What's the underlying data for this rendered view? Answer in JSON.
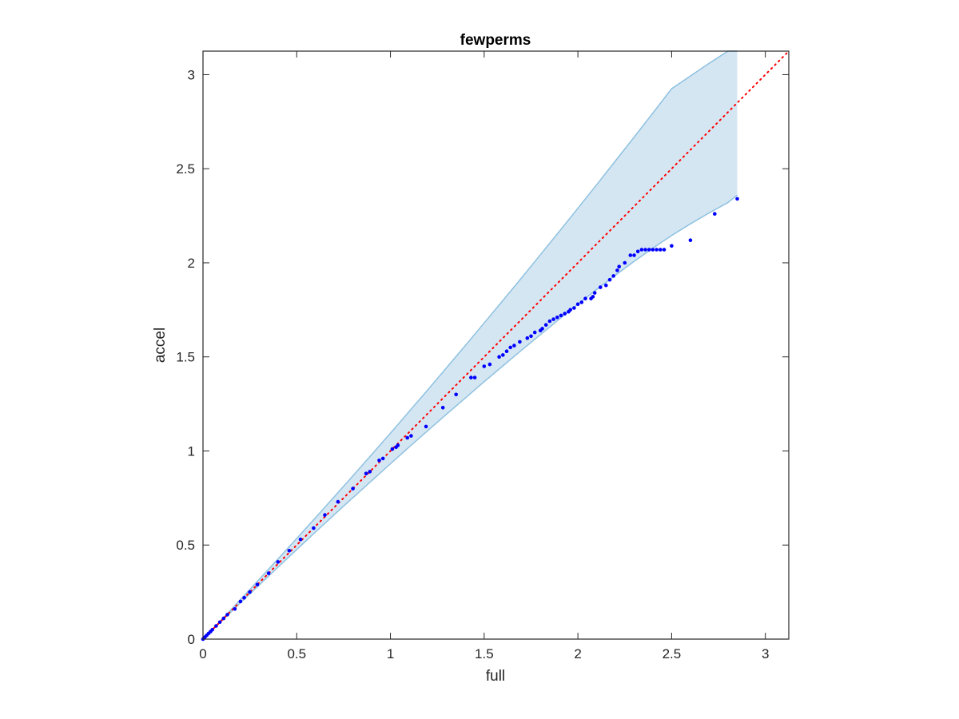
{
  "chart_data": {
    "type": "scatter",
    "title": "fewperms",
    "xlabel": "full",
    "ylabel": "accel",
    "xlim": [
      0,
      3.125
    ],
    "ylim": [
      0,
      3.125
    ],
    "xticks": [
      0,
      0.5,
      1,
      1.5,
      2,
      2.5,
      3
    ],
    "yticks": [
      0,
      0.5,
      1,
      1.5,
      2,
      2.5,
      3
    ],
    "xtick_labels": [
      "0",
      "0.5",
      "1",
      "1.5",
      "2",
      "2.5",
      "3"
    ],
    "ytick_labels": [
      "0",
      "0.5",
      "1",
      "1.5",
      "2",
      "2.5",
      "3"
    ],
    "grid": false,
    "colors": {
      "points": "#0000ff",
      "reference_line": "#ff0000",
      "band_fill": "#d5e6f3",
      "band_edge": "#8ec1e0",
      "axes": "#262626"
    },
    "reference_line": {
      "style": "dotted",
      "x": [
        0,
        3.125
      ],
      "y": [
        0,
        3.125
      ]
    },
    "band": {
      "x": [
        0,
        0.1,
        0.2,
        0.3,
        0.4,
        0.5,
        0.6,
        0.7,
        0.8,
        0.9,
        1.0,
        1.1,
        1.2,
        1.3,
        1.4,
        1.5,
        1.6,
        1.7,
        1.8,
        1.9,
        2.0,
        2.1,
        2.2,
        2.3,
        2.4,
        2.5,
        2.6,
        2.7,
        2.8,
        2.85
      ],
      "upper": [
        0,
        0.104,
        0.21,
        0.318,
        0.426,
        0.535,
        0.645,
        0.756,
        0.868,
        0.981,
        1.095,
        1.21,
        1.326,
        1.443,
        1.561,
        1.68,
        1.8,
        1.921,
        2.043,
        2.166,
        2.29,
        2.415,
        2.541,
        2.668,
        2.796,
        2.925,
        2.993,
        3.06,
        3.125,
        3.125
      ],
      "lower": [
        0,
        0.097,
        0.193,
        0.288,
        0.382,
        0.476,
        0.569,
        0.661,
        0.752,
        0.842,
        0.932,
        1.021,
        1.109,
        1.196,
        1.282,
        1.368,
        1.452,
        1.536,
        1.618,
        1.7,
        1.78,
        1.858,
        1.934,
        2.008,
        2.078,
        2.145,
        2.207,
        2.265,
        2.32,
        2.36
      ]
    },
    "series": [
      {
        "x": [
          0.0,
          0.01,
          0.02,
          0.03,
          0.04,
          0.05,
          0.07,
          0.09,
          0.11,
          0.13,
          0.17,
          0.2,
          0.22,
          0.25,
          0.29,
          0.35,
          0.4,
          0.46,
          0.52,
          0.59,
          0.65,
          0.72,
          0.8,
          0.87,
          0.89,
          0.94,
          0.96,
          1.01,
          1.03,
          1.04,
          1.09,
          1.11,
          1.19,
          1.28,
          1.35,
          1.43,
          1.45,
          1.5,
          1.53,
          1.58,
          1.6,
          1.62,
          1.64,
          1.66,
          1.69,
          1.73,
          1.75,
          1.77,
          1.8,
          1.81,
          1.83,
          1.85,
          1.87,
          1.89,
          1.91,
          1.93,
          1.95,
          1.96,
          1.98,
          2.0,
          2.02,
          2.04,
          2.07,
          2.08,
          2.09,
          2.12,
          2.15,
          2.17,
          2.19,
          2.21,
          2.22,
          2.25,
          2.28,
          2.3,
          2.32,
          2.34,
          2.36,
          2.38,
          2.4,
          2.42,
          2.44,
          2.46,
          2.5,
          2.6,
          2.73,
          2.85
        ],
        "y": [
          0.0,
          0.01,
          0.02,
          0.03,
          0.04,
          0.05,
          0.07,
          0.09,
          0.11,
          0.13,
          0.16,
          0.2,
          0.22,
          0.25,
          0.29,
          0.35,
          0.41,
          0.47,
          0.53,
          0.59,
          0.66,
          0.73,
          0.8,
          0.88,
          0.89,
          0.95,
          0.96,
          1.01,
          1.02,
          1.03,
          1.07,
          1.08,
          1.13,
          1.23,
          1.3,
          1.39,
          1.39,
          1.45,
          1.46,
          1.5,
          1.51,
          1.53,
          1.55,
          1.56,
          1.58,
          1.6,
          1.61,
          1.63,
          1.64,
          1.65,
          1.67,
          1.69,
          1.7,
          1.71,
          1.72,
          1.73,
          1.74,
          1.75,
          1.76,
          1.78,
          1.79,
          1.81,
          1.81,
          1.82,
          1.84,
          1.87,
          1.88,
          1.91,
          1.93,
          1.96,
          1.98,
          2.0,
          2.04,
          2.04,
          2.06,
          2.07,
          2.07,
          2.07,
          2.07,
          2.07,
          2.07,
          2.07,
          2.09,
          2.12,
          2.26,
          2.34
        ]
      }
    ]
  }
}
